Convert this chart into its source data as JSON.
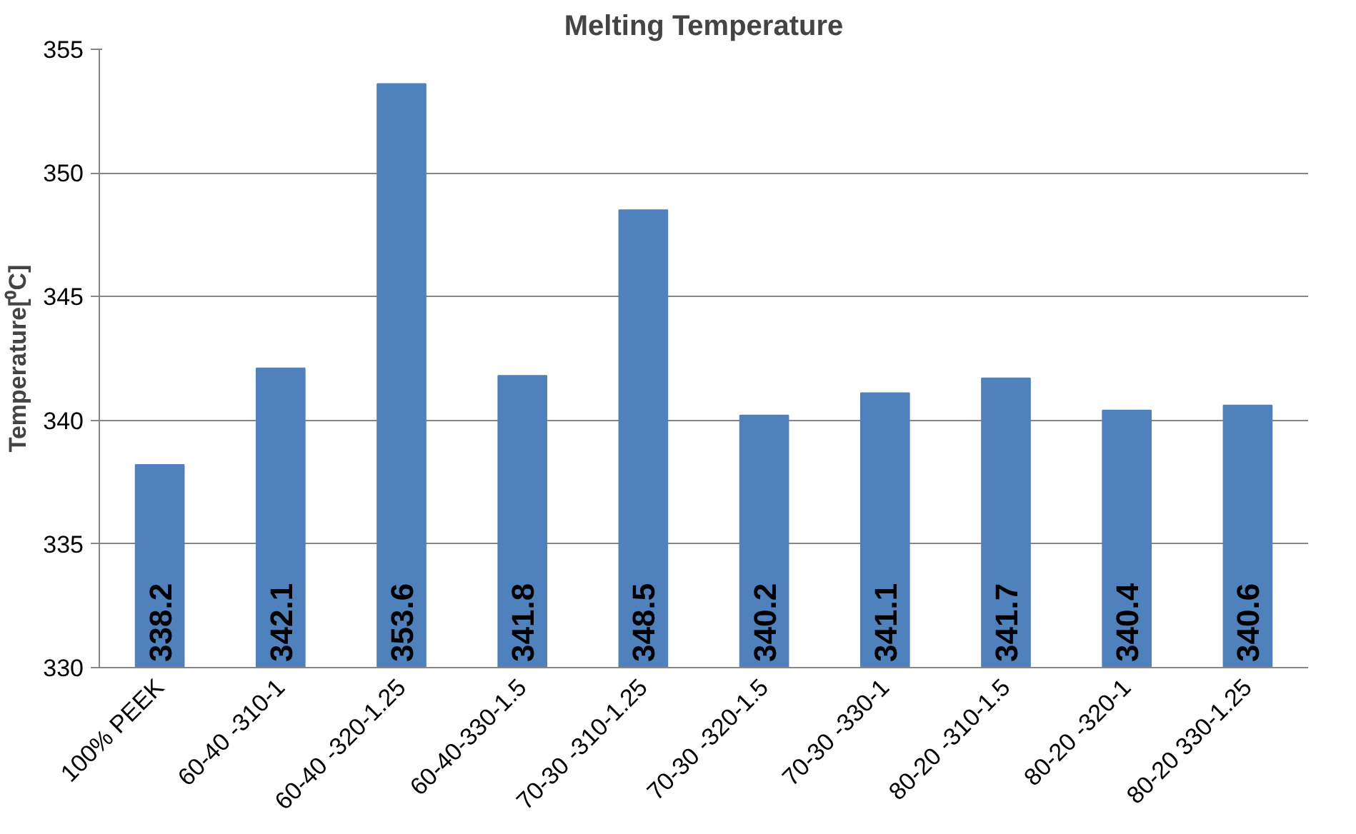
{
  "chart_data": {
    "type": "bar",
    "title": "Melting Temperature",
    "ylabel": "Temperature[⁰C]",
    "categories": [
      "100% PEEK",
      "60-40 -310-1",
      "60-40 -320-1.25",
      "60-40-330-1.5",
      "70-30 -310-1.25",
      "70-30 -320-1.5",
      "70-30 -330-1",
      "80-20 -310-1.5",
      "80-20 -320-1",
      "80-20 330-1.25"
    ],
    "values": [
      338.2,
      342.1,
      353.6,
      341.8,
      348.5,
      340.2,
      341.1,
      341.7,
      340.4,
      340.6
    ],
    "color": "#4f81bd",
    "ylim": [
      330,
      355
    ],
    "yticks": [
      330,
      335,
      340,
      345,
      350,
      355
    ],
    "grid": "y",
    "data_labels": true
  }
}
